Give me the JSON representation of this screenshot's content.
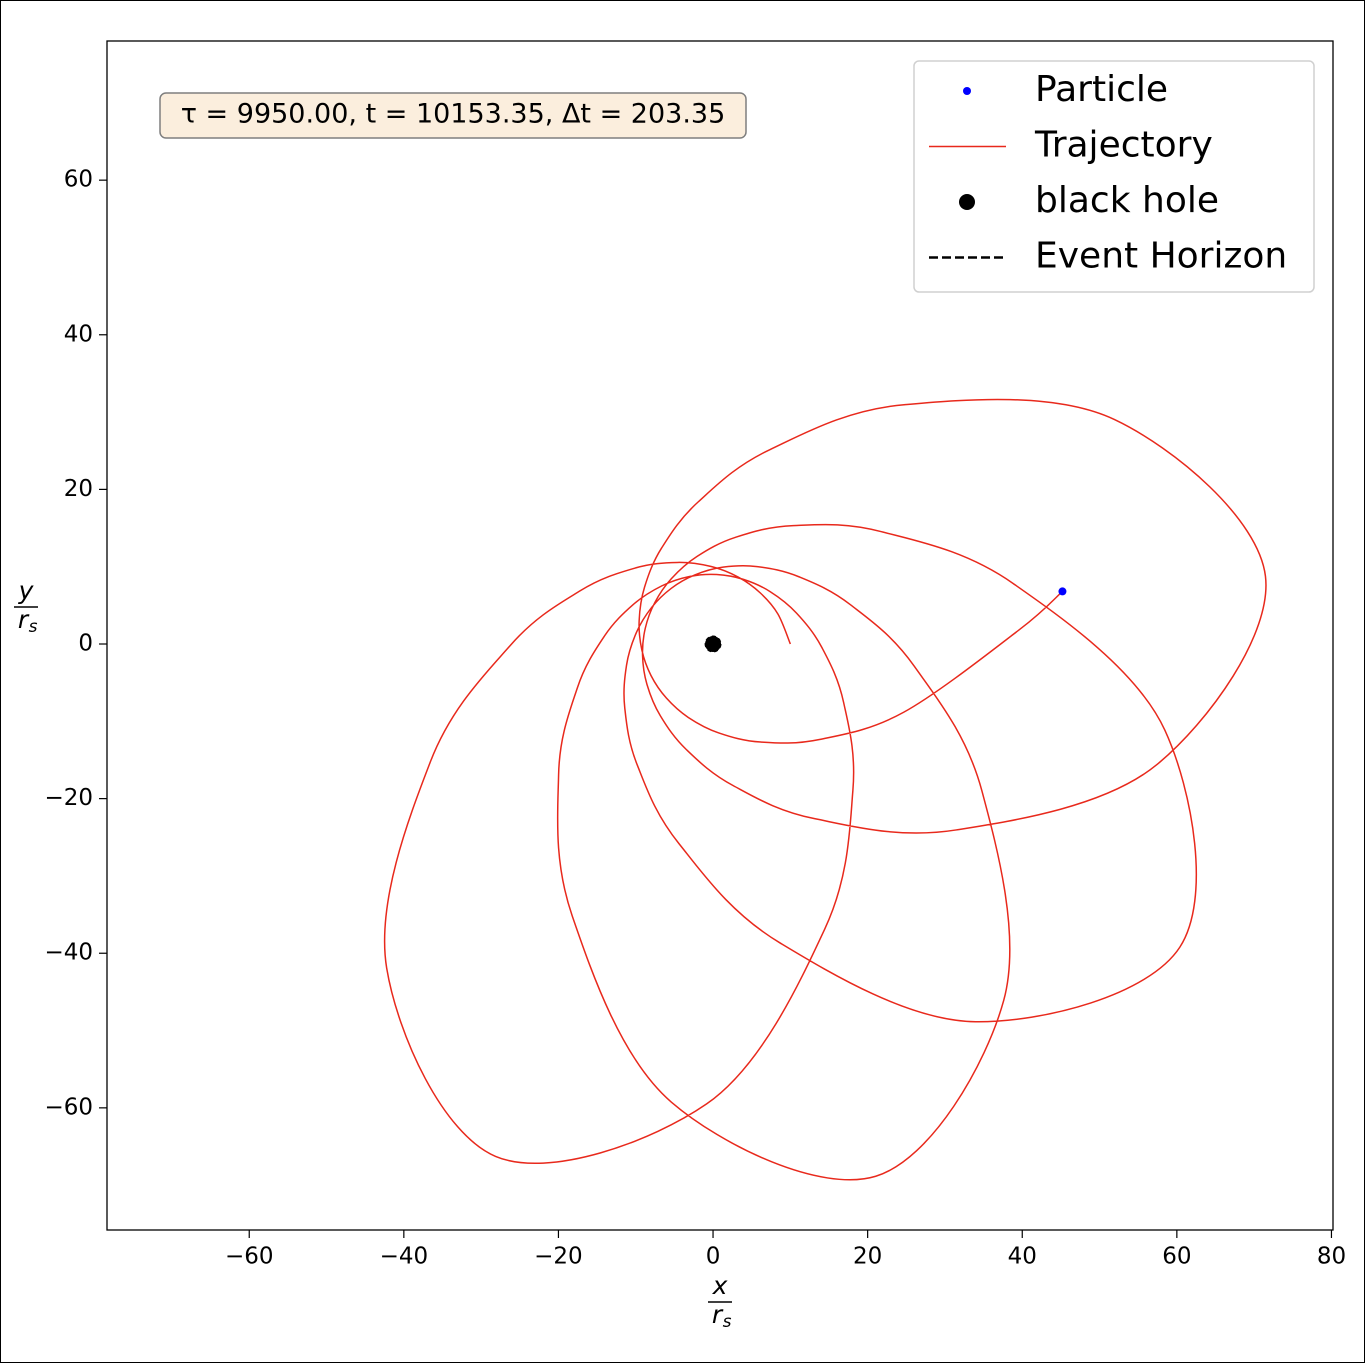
{
  "chart_data": {
    "type": "line",
    "annotation": "τ = 9950.00, t = 10153.35, Δt = 203.35",
    "xlabel": {
      "numerator": "x",
      "denominator": "r",
      "subscript": "s"
    },
    "ylabel": {
      "numerator": "y",
      "denominator": "r",
      "subscript": "s"
    },
    "xlim": [
      -78.4,
      80.2
    ],
    "ylim": [
      -75.8,
      78.0
    ],
    "xticks": [
      {
        "value": -60,
        "label": "−60"
      },
      {
        "value": -40,
        "label": "−40"
      },
      {
        "value": -20,
        "label": "−20"
      },
      0,
      20,
      40,
      60,
      80
    ],
    "yticks": [
      {
        "value": -60,
        "label": "−60"
      },
      {
        "value": -40,
        "label": "−40"
      },
      {
        "value": -20,
        "label": "−20"
      },
      0,
      20,
      40,
      60
    ],
    "legend": "upper right",
    "series": [
      {
        "name": "Particle",
        "kind": "point",
        "color": "#0000ff",
        "x": [
          45.2
        ],
        "y": [
          6.8
        ]
      },
      {
        "name": "Trajectory",
        "kind": "line",
        "color": "#e8291c",
        "x": [
          10,
          8.39,
          6.14,
          3.28,
          -0.24,
          -4.63,
          -10.13,
          -17.16,
          -26.19,
          -36.56,
          -42.22,
          -28.13,
          -0.83,
          14.45,
          18.09,
          16.89,
          14.09,
          10.8,
          7.38,
          3.93,
          0.47,
          -3.04,
          -6.63,
          -10.33,
          -14.06,
          -17.58,
          -19.98,
          -18.22,
          -5.39,
          21.05,
          37.6,
          34.77,
          26.03,
          17.79,
          11.1,
          5.71,
          1.29,
          -2.36,
          -5.42,
          -7.94,
          -9.91,
          -11.19,
          -11.42,
          -9.78,
          -4.41,
          8.64,
          33.96,
          60.39,
          58.45,
          38.82,
          21.79,
          10.37,
          2.91,
          -2.06,
          -5.4,
          -7.55,
          -8.77,
          -9.12,
          -8.55,
          -6.82,
          -3.43,
          2.61,
          13.21,
          31.46,
          57.42,
          71.46,
          51.94,
          24.71,
          7.35,
          -1.9,
          -6.64,
          -8.86,
          -9.56,
          -9.21,
          -8.02,
          -6.04,
          -3.2,
          0.74,
          6.16,
          13.77,
          24.66,
          39.56,
          45.2
        ],
        "y": [
          0,
          3.88,
          6.58,
          8.64,
          10.02,
          10.55,
          9.81,
          6.9,
          -0.14,
          -15.22,
          -41.92,
          -66.28,
          -59.49,
          -36.87,
          -18.94,
          -7.55,
          -0.47,
          4.0,
          6.78,
          8.36,
          8.99,
          8.73,
          7.52,
          5.1,
          1.01,
          -5.75,
          -16.94,
          -35.16,
          -59.26,
          -68.85,
          -46.11,
          -18.96,
          -2.87,
          5.07,
          8.7,
          10.01,
          9.94,
          8.93,
          7.19,
          4.73,
          1.5,
          -2.73,
          -8.27,
          -15.71,
          -25.82,
          -38.65,
          -48.86,
          -39.21,
          -11.15,
          7.83,
          14.53,
          15.32,
          13.8,
          11.33,
          8.44,
          5.33,
          2.02,
          -1.48,
          -5.22,
          -9.28,
          -13.68,
          -18.32,
          -22.61,
          -24.05,
          -15.6,
          8.78,
          29.03,
          30.95,
          25.14,
          18.4,
          12.44,
          7.36,
          3.0,
          -0.77,
          -4.09,
          -6.99,
          -9.5,
          -11.5,
          -12.68,
          -12.35,
          -8.83,
          1.8,
          6.8
        ]
      },
      {
        "name": "black hole",
        "kind": "point",
        "color": "#000000",
        "x": [
          0
        ],
        "y": [
          0
        ]
      },
      {
        "name": "Event Horizon",
        "kind": "circle",
        "color": "#000000",
        "linestyle": "dashed",
        "x": [
          0
        ],
        "y": [
          0
        ],
        "radius": 1
      }
    ]
  }
}
